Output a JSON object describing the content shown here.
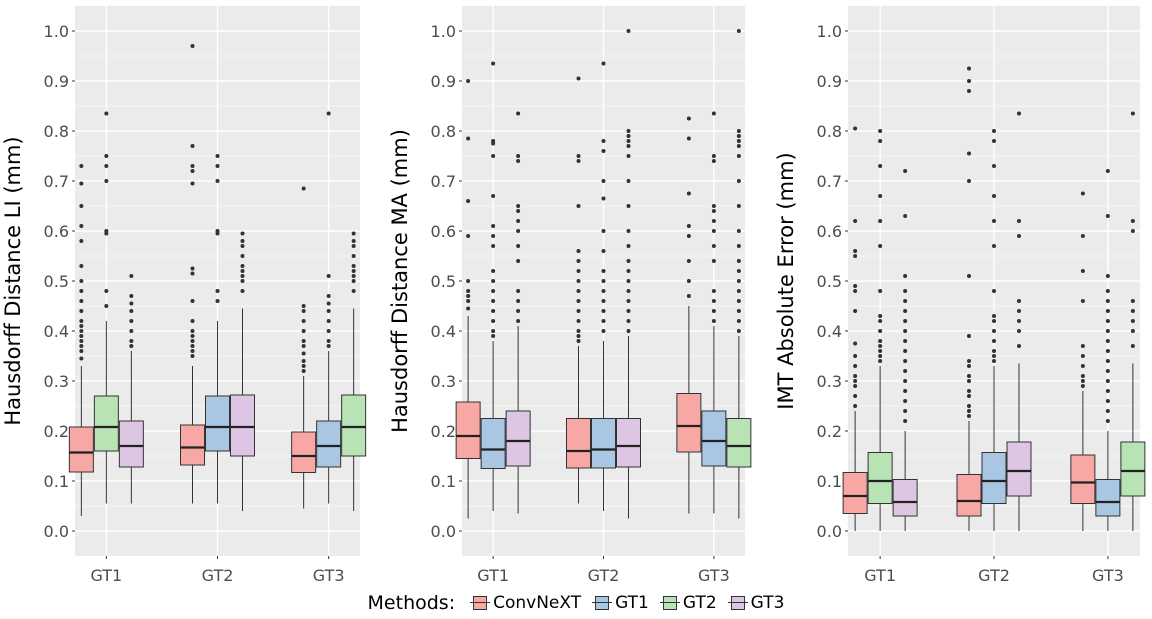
{
  "colors": {
    "panel_bg": "#ebebeb",
    "grid": "#ffffff",
    "ConvNeXT": "#f8a8a4",
    "GT1": "#a9c6e2",
    "GT2": "#b8e3b4",
    "GT3": "#dcc6e3",
    "outline": "#333333"
  },
  "legend": {
    "title": "Methods:",
    "items": [
      "ConvNeXT",
      "GT1",
      "GT2",
      "GT3"
    ]
  },
  "chart_data": [
    {
      "type": "box",
      "title": "",
      "xlabel": "",
      "ylabel": "Hausdorff Distance LI (mm)",
      "ylim": [
        -0.05,
        1.05
      ],
      "yticks": [
        "0.0",
        "0.1",
        "0.2",
        "0.3",
        "0.4",
        "0.5",
        "0.6",
        "0.7",
        "0.8",
        "0.9",
        "1.0"
      ],
      "categories": [
        "GT1",
        "GT2",
        "GT3"
      ],
      "groups": [
        {
          "category": "GT1",
          "boxes": [
            {
              "method": "ConvNeXT",
              "whisker_low": 0.03,
              "q1": 0.118,
              "median": 0.157,
              "q3": 0.208,
              "whisker_high": 0.33,
              "outliers": [
                0.345,
                0.36,
                0.37,
                0.38,
                0.39,
                0.4,
                0.41,
                0.42,
                0.44,
                0.46,
                0.48,
                0.5,
                0.53,
                0.58,
                0.61,
                0.65,
                0.695,
                0.73
              ]
            },
            {
              "method": "GT2",
              "whisker_low": 0.055,
              "q1": 0.16,
              "median": 0.208,
              "q3": 0.27,
              "whisker_high": 0.42,
              "outliers": [
                0.45,
                0.48,
                0.595,
                0.6,
                0.7,
                0.73,
                0.75,
                0.835
              ]
            },
            {
              "method": "GT3",
              "whisker_low": 0.055,
              "q1": 0.128,
              "median": 0.17,
              "q3": 0.22,
              "whisker_high": 0.36,
              "outliers": [
                0.37,
                0.38,
                0.4,
                0.42,
                0.44,
                0.455,
                0.47,
                0.51
              ]
            }
          ]
        },
        {
          "category": "GT2",
          "boxes": [
            {
              "method": "ConvNeXT",
              "whisker_low": 0.055,
              "q1": 0.132,
              "median": 0.167,
              "q3": 0.212,
              "whisker_high": 0.33,
              "outliers": [
                0.35,
                0.36,
                0.37,
                0.38,
                0.39,
                0.4,
                0.42,
                0.46,
                0.515,
                0.525,
                0.695,
                0.72,
                0.73,
                0.77,
                0.97
              ]
            },
            {
              "method": "GT1",
              "whisker_low": 0.055,
              "q1": 0.16,
              "median": 0.208,
              "q3": 0.27,
              "whisker_high": 0.42,
              "outliers": [
                0.46,
                0.48,
                0.595,
                0.6,
                0.7,
                0.73,
                0.75
              ]
            },
            {
              "method": "GT3",
              "whisker_low": 0.04,
              "q1": 0.15,
              "median": 0.208,
              "q3": 0.272,
              "whisker_high": 0.445,
              "outliers": [
                0.48,
                0.5,
                0.51,
                0.52,
                0.53,
                0.55,
                0.57,
                0.58,
                0.595
              ]
            }
          ]
        },
        {
          "category": "GT3",
          "boxes": [
            {
              "method": "ConvNeXT",
              "whisker_low": 0.045,
              "q1": 0.117,
              "median": 0.15,
              "q3": 0.198,
              "whisker_high": 0.31,
              "outliers": [
                0.32,
                0.33,
                0.34,
                0.355,
                0.37,
                0.38,
                0.4,
                0.42,
                0.44,
                0.45,
                0.685
              ]
            },
            {
              "method": "GT1",
              "whisker_low": 0.055,
              "q1": 0.128,
              "median": 0.17,
              "q3": 0.22,
              "whisker_high": 0.36,
              "outliers": [
                0.37,
                0.38,
                0.4,
                0.42,
                0.44,
                0.455,
                0.47,
                0.51,
                0.835
              ]
            },
            {
              "method": "GT2",
              "whisker_low": 0.04,
              "q1": 0.15,
              "median": 0.208,
              "q3": 0.272,
              "whisker_high": 0.445,
              "outliers": [
                0.48,
                0.5,
                0.51,
                0.52,
                0.53,
                0.55,
                0.57,
                0.58,
                0.595
              ]
            }
          ]
        }
      ]
    },
    {
      "type": "box",
      "title": "",
      "xlabel": "",
      "ylabel": "Hausdorff Distance MA (mm)",
      "ylim": [
        -0.05,
        1.05
      ],
      "yticks": [
        "0.0",
        "0.1",
        "0.2",
        "0.3",
        "0.4",
        "0.5",
        "0.6",
        "0.7",
        "0.8",
        "0.9",
        "1.0"
      ],
      "categories": [
        "GT1",
        "GT2",
        "GT3"
      ],
      "groups": [
        {
          "category": "GT1",
          "boxes": [
            {
              "method": "ConvNeXT",
              "whisker_low": 0.025,
              "q1": 0.145,
              "median": 0.19,
              "q3": 0.258,
              "whisker_high": 0.43,
              "outliers": [
                0.445,
                0.46,
                0.47,
                0.48,
                0.5,
                0.59,
                0.66,
                0.785,
                0.9
              ]
            },
            {
              "method": "GT1",
              "whisker_low": 0.04,
              "q1": 0.125,
              "median": 0.163,
              "q3": 0.225,
              "whisker_high": 0.38,
              "outliers": [
                0.39,
                0.4,
                0.42,
                0.44,
                0.46,
                0.48,
                0.5,
                0.52,
                0.57,
                0.59,
                0.61,
                0.67,
                0.75,
                0.775,
                0.78,
                0.935
              ]
            },
            {
              "method": "GT3",
              "whisker_low": 0.035,
              "q1": 0.13,
              "median": 0.18,
              "q3": 0.24,
              "whisker_high": 0.41,
              "outliers": [
                0.42,
                0.44,
                0.46,
                0.48,
                0.54,
                0.57,
                0.6,
                0.62,
                0.64,
                0.65,
                0.74,
                0.75,
                0.835
              ]
            }
          ]
        },
        {
          "category": "GT2",
          "boxes": [
            {
              "method": "ConvNeXT",
              "whisker_low": 0.055,
              "q1": 0.126,
              "median": 0.16,
              "q3": 0.225,
              "whisker_high": 0.37,
              "outliers": [
                0.38,
                0.39,
                0.4,
                0.42,
                0.44,
                0.46,
                0.48,
                0.5,
                0.52,
                0.54,
                0.56,
                0.65,
                0.74,
                0.75,
                0.905
              ]
            },
            {
              "method": "GT1",
              "whisker_low": 0.04,
              "q1": 0.126,
              "median": 0.163,
              "q3": 0.225,
              "whisker_high": 0.38,
              "outliers": [
                0.4,
                0.42,
                0.44,
                0.46,
                0.48,
                0.5,
                0.52,
                0.56,
                0.6,
                0.665,
                0.7,
                0.76,
                0.78,
                0.935
              ]
            },
            {
              "method": "GT3",
              "whisker_low": 0.025,
              "q1": 0.128,
              "median": 0.17,
              "q3": 0.225,
              "whisker_high": 0.39,
              "outliers": [
                0.4,
                0.42,
                0.44,
                0.46,
                0.48,
                0.5,
                0.52,
                0.54,
                0.57,
                0.6,
                0.65,
                0.7,
                0.75,
                0.77,
                0.78,
                0.79,
                0.8,
                1.0
              ]
            }
          ]
        },
        {
          "category": "GT3",
          "boxes": [
            {
              "method": "ConvNeXT",
              "whisker_low": 0.035,
              "q1": 0.158,
              "median": 0.21,
              "q3": 0.275,
              "whisker_high": 0.45,
              "outliers": [
                0.47,
                0.5,
                0.54,
                0.59,
                0.61,
                0.675,
                0.785,
                0.825
              ]
            },
            {
              "method": "GT1",
              "whisker_low": 0.035,
              "q1": 0.13,
              "median": 0.18,
              "q3": 0.24,
              "whisker_high": 0.41,
              "outliers": [
                0.42,
                0.44,
                0.46,
                0.48,
                0.54,
                0.57,
                0.6,
                0.62,
                0.64,
                0.65,
                0.74,
                0.75,
                0.835
              ]
            },
            {
              "method": "GT2",
              "whisker_low": 0.025,
              "q1": 0.128,
              "median": 0.17,
              "q3": 0.225,
              "whisker_high": 0.39,
              "outliers": [
                0.4,
                0.42,
                0.44,
                0.46,
                0.48,
                0.5,
                0.52,
                0.54,
                0.57,
                0.6,
                0.65,
                0.7,
                0.75,
                0.77,
                0.78,
                0.79,
                0.8,
                1.0
              ]
            }
          ]
        }
      ]
    },
    {
      "type": "box",
      "title": "",
      "xlabel": "",
      "ylabel": "IMT Absolute Error (mm)",
      "ylim": [
        -0.05,
        1.05
      ],
      "yticks": [
        "0.0",
        "0.1",
        "0.2",
        "0.3",
        "0.4",
        "0.5",
        "0.6",
        "0.7",
        "0.8",
        "0.9",
        "1.0"
      ],
      "categories": [
        "GT1",
        "GT2",
        "GT3"
      ],
      "groups": [
        {
          "category": "GT1",
          "boxes": [
            {
              "method": "ConvNeXT",
              "whisker_low": 0.0,
              "q1": 0.035,
              "median": 0.07,
              "q3": 0.117,
              "whisker_high": 0.24,
              "outliers": [
                0.25,
                0.27,
                0.29,
                0.3,
                0.31,
                0.33,
                0.35,
                0.375,
                0.44,
                0.48,
                0.49,
                0.55,
                0.56,
                0.62,
                0.805
              ]
            },
            {
              "method": "GT2",
              "whisker_low": 0.0,
              "q1": 0.055,
              "median": 0.1,
              "q3": 0.157,
              "whisker_high": 0.33,
              "outliers": [
                0.34,
                0.35,
                0.36,
                0.37,
                0.38,
                0.4,
                0.42,
                0.43,
                0.48,
                0.57,
                0.62,
                0.67,
                0.73,
                0.78,
                0.8
              ]
            },
            {
              "method": "GT3",
              "whisker_low": 0.0,
              "q1": 0.03,
              "median": 0.058,
              "q3": 0.103,
              "whisker_high": 0.2,
              "outliers": [
                0.22,
                0.24,
                0.26,
                0.28,
                0.3,
                0.32,
                0.34,
                0.36,
                0.38,
                0.4,
                0.42,
                0.44,
                0.46,
                0.48,
                0.51,
                0.63,
                0.72
              ]
            }
          ]
        },
        {
          "category": "GT2",
          "boxes": [
            {
              "method": "ConvNeXT",
              "whisker_low": 0.0,
              "q1": 0.03,
              "median": 0.06,
              "q3": 0.113,
              "whisker_high": 0.22,
              "outliers": [
                0.23,
                0.24,
                0.25,
                0.27,
                0.28,
                0.3,
                0.31,
                0.33,
                0.34,
                0.39,
                0.51,
                0.7,
                0.755,
                0.88,
                0.9,
                0.925
              ]
            },
            {
              "method": "GT1",
              "whisker_low": 0.0,
              "q1": 0.055,
              "median": 0.1,
              "q3": 0.157,
              "whisker_high": 0.33,
              "outliers": [
                0.34,
                0.35,
                0.36,
                0.38,
                0.4,
                0.42,
                0.43,
                0.48,
                0.57,
                0.62,
                0.67,
                0.73,
                0.78,
                0.8
              ]
            },
            {
              "method": "GT3",
              "whisker_low": 0.0,
              "q1": 0.07,
              "median": 0.12,
              "q3": 0.178,
              "whisker_high": 0.335,
              "outliers": [
                0.37,
                0.4,
                0.42,
                0.44,
                0.46,
                0.59,
                0.62,
                0.835
              ]
            }
          ]
        },
        {
          "category": "GT3",
          "boxes": [
            {
              "method": "ConvNeXT",
              "whisker_low": 0.0,
              "q1": 0.055,
              "median": 0.097,
              "q3": 0.152,
              "whisker_high": 0.28,
              "outliers": [
                0.29,
                0.3,
                0.31,
                0.33,
                0.35,
                0.37,
                0.46,
                0.52,
                0.59,
                0.675
              ]
            },
            {
              "method": "GT1",
              "whisker_low": 0.0,
              "q1": 0.03,
              "median": 0.058,
              "q3": 0.103,
              "whisker_high": 0.2,
              "outliers": [
                0.22,
                0.24,
                0.26,
                0.28,
                0.3,
                0.32,
                0.34,
                0.36,
                0.38,
                0.4,
                0.42,
                0.44,
                0.46,
                0.48,
                0.51,
                0.63,
                0.72
              ]
            },
            {
              "method": "GT2",
              "whisker_low": 0.0,
              "q1": 0.07,
              "median": 0.12,
              "q3": 0.178,
              "whisker_high": 0.335,
              "outliers": [
                0.37,
                0.4,
                0.42,
                0.44,
                0.46,
                0.6,
                0.62,
                0.835
              ]
            }
          ]
        }
      ]
    }
  ]
}
